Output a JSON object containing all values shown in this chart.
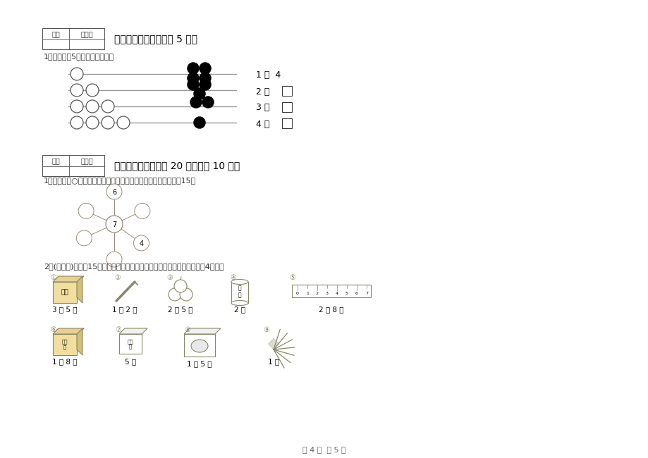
{
  "bg_color": "#ffffff",
  "section9_title": "九、个性空间（本题共 5 分）",
  "section9_q1": "1、想一想，5是几和几合成的？",
  "section10_title": "十、附加题（本题共 20 分，每题 10 分）",
  "section10_q1": "1、在下面的○中填上适当的数，使每条线上的三个数相加都等于15。",
  "section10_q2": "2、(探究题)小松用15元买以下物品。如果想把钱全部花完，他可以买哪几4物品？",
  "bead_rows": [
    {
      "open": 1,
      "filled": 4,
      "answer": "1 和  4",
      "has_box": false
    },
    {
      "open": 2,
      "filled": 3,
      "answer": "2 和  ",
      "has_box": true
    },
    {
      "open": 3,
      "filled": 2,
      "answer": "3 和  ",
      "has_box": true
    },
    {
      "open": 4,
      "filled": 1,
      "answer": "4 和  ",
      "has_box": true
    }
  ],
  "footer": "第 4 页  共 5 页",
  "spider_center_label": "7",
  "spider_outer_labels": [
    "6",
    "",
    "4",
    "",
    "",
    ""
  ],
  "spider_angles": [
    90,
    25,
    -35,
    -90,
    205,
    155
  ],
  "spider_radii": [
    46,
    44,
    47,
    50,
    47,
    44
  ],
  "items_row1_labels": [
    "3 元 5 角",
    "1 元 2 角",
    "2 元 5 角",
    "2 元",
    "2 元 8 角"
  ],
  "items_row1_nums": [
    "①",
    "②",
    "③",
    "④",
    "⑤"
  ],
  "items_row2_labels": [
    "1 元 8 角",
    "5 角",
    "1 元 5 角",
    "1 元"
  ],
  "items_row2_nums": [
    "⑥",
    "⑦",
    "⑧",
    "⑨"
  ],
  "item_color": "#888868",
  "score_box_color": "#000000",
  "text_color": "#333333"
}
